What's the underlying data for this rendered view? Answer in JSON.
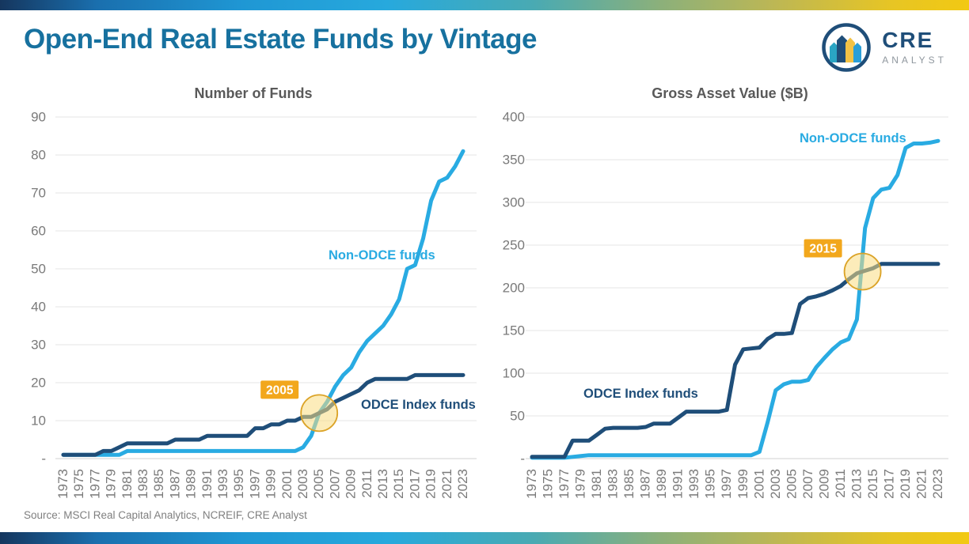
{
  "page": {
    "title": "Open-End Real Estate Funds by Vintage",
    "source": "Source: MSCI Real Capital Analytics, NCREIF, CRE Analyst"
  },
  "logo": {
    "text_primary": "CRE",
    "text_secondary": "ANALYST"
  },
  "colors": {
    "title_blue": "#17719f",
    "non_odce_blue": "#29abe2",
    "odce_navy": "#1f4e79",
    "callout_gold": "#f2a71c",
    "grid_gray": "#ebebeb",
    "axis_text_gray": "#7a7a7a"
  },
  "chart_data": [
    {
      "type": "line",
      "title": "Number of Funds",
      "grid": true,
      "legend_position": "inline-labels",
      "years": [
        1973,
        1974,
        1975,
        1976,
        1977,
        1978,
        1979,
        1980,
        1981,
        1982,
        1983,
        1984,
        1985,
        1986,
        1987,
        1988,
        1989,
        1990,
        1991,
        1992,
        1993,
        1994,
        1995,
        1996,
        1997,
        1998,
        1999,
        2000,
        2001,
        2002,
        2003,
        2004,
        2005,
        2006,
        2007,
        2008,
        2009,
        2010,
        2011,
        2012,
        2013,
        2014,
        2015,
        2016,
        2017,
        2018,
        2019,
        2020,
        2021,
        2022,
        2023
      ],
      "xticks": [
        1973,
        1975,
        1977,
        1979,
        1981,
        1983,
        1985,
        1987,
        1989,
        1991,
        1993,
        1995,
        1997,
        1999,
        2001,
        2003,
        2005,
        2007,
        2009,
        2011,
        2013,
        2015,
        2017,
        2019,
        2021,
        2023
      ],
      "ylim": [
        0,
        90
      ],
      "yticks": [
        0,
        10,
        20,
        30,
        40,
        50,
        60,
        70,
        80,
        90
      ],
      "ytick_zero_label": "-",
      "series": [
        {
          "name": "Non-ODCE funds",
          "color": "#29abe2",
          "values": [
            1,
            1,
            1,
            1,
            1,
            1,
            1,
            1,
            2,
            2,
            2,
            2,
            2,
            2,
            2,
            2,
            2,
            2,
            2,
            2,
            2,
            2,
            2,
            2,
            2,
            2,
            2,
            2,
            2,
            2,
            3,
            6,
            12,
            15,
            19,
            22,
            24,
            28,
            31,
            33,
            35,
            38,
            42,
            50,
            51,
            58,
            68,
            73,
            74,
            77,
            81
          ]
        },
        {
          "name": "ODCE Index funds",
          "color": "#1f4e79",
          "values": [
            1,
            1,
            1,
            1,
            1,
            2,
            2,
            3,
            4,
            4,
            4,
            4,
            4,
            4,
            5,
            5,
            5,
            5,
            6,
            6,
            6,
            6,
            6,
            6,
            8,
            8,
            9,
            9,
            10,
            10,
            11,
            11,
            12,
            13,
            15,
            16,
            17,
            18,
            20,
            21,
            21,
            21,
            21,
            21,
            22,
            22,
            22,
            22,
            22,
            22,
            22
          ]
        }
      ],
      "annotation": {
        "label": "2005",
        "year": 2005,
        "value": 12
      }
    },
    {
      "type": "line",
      "title": "Gross Asset Value ($B)",
      "grid": true,
      "legend_position": "inline-labels",
      "years": [
        1973,
        1974,
        1975,
        1976,
        1977,
        1978,
        1979,
        1980,
        1981,
        1982,
        1983,
        1984,
        1985,
        1986,
        1987,
        1988,
        1989,
        1990,
        1991,
        1992,
        1993,
        1994,
        1995,
        1996,
        1997,
        1998,
        1999,
        2000,
        2001,
        2002,
        2003,
        2004,
        2005,
        2006,
        2007,
        2008,
        2009,
        2010,
        2011,
        2012,
        2013,
        2014,
        2015,
        2016,
        2017,
        2018,
        2019,
        2020,
        2021,
        2022,
        2023
      ],
      "xticks": [
        1973,
        1975,
        1977,
        1979,
        1981,
        1983,
        1985,
        1987,
        1989,
        1991,
        1993,
        1995,
        1997,
        1999,
        2001,
        2003,
        2005,
        2007,
        2009,
        2011,
        2013,
        2015,
        2017,
        2019,
        2021,
        2023
      ],
      "ylim": [
        0,
        400
      ],
      "yticks": [
        0,
        50,
        100,
        150,
        200,
        250,
        300,
        350,
        400
      ],
      "ytick_zero_label": "-",
      "series": [
        {
          "name": "Non-ODCE funds",
          "color": "#29abe2",
          "values": [
            1,
            1,
            1,
            1,
            1,
            2,
            3,
            4,
            4,
            4,
            4,
            4,
            4,
            4,
            4,
            4,
            4,
            4,
            4,
            4,
            4,
            4,
            4,
            4,
            4,
            4,
            4,
            4,
            8,
            42,
            80,
            87,
            90,
            90,
            92,
            107,
            118,
            128,
            136,
            140,
            163,
            270,
            305,
            315,
            317,
            332,
            364,
            369,
            369,
            370,
            372
          ]
        },
        {
          "name": "ODCE Index funds",
          "color": "#1f4e79",
          "values": [
            2,
            2,
            2,
            2,
            2,
            21,
            21,
            21,
            28,
            35,
            36,
            36,
            36,
            36,
            37,
            41,
            41,
            41,
            48,
            55,
            55,
            55,
            55,
            55,
            57,
            110,
            128,
            129,
            130,
            140,
            146,
            146,
            147,
            181,
            188,
            190,
            193,
            197,
            202,
            210,
            217,
            220,
            223,
            228,
            228,
            228,
            228,
            228,
            228,
            228,
            228
          ]
        }
      ],
      "annotation": {
        "label": "2015",
        "year": 2013.7,
        "value": 219
      }
    }
  ]
}
